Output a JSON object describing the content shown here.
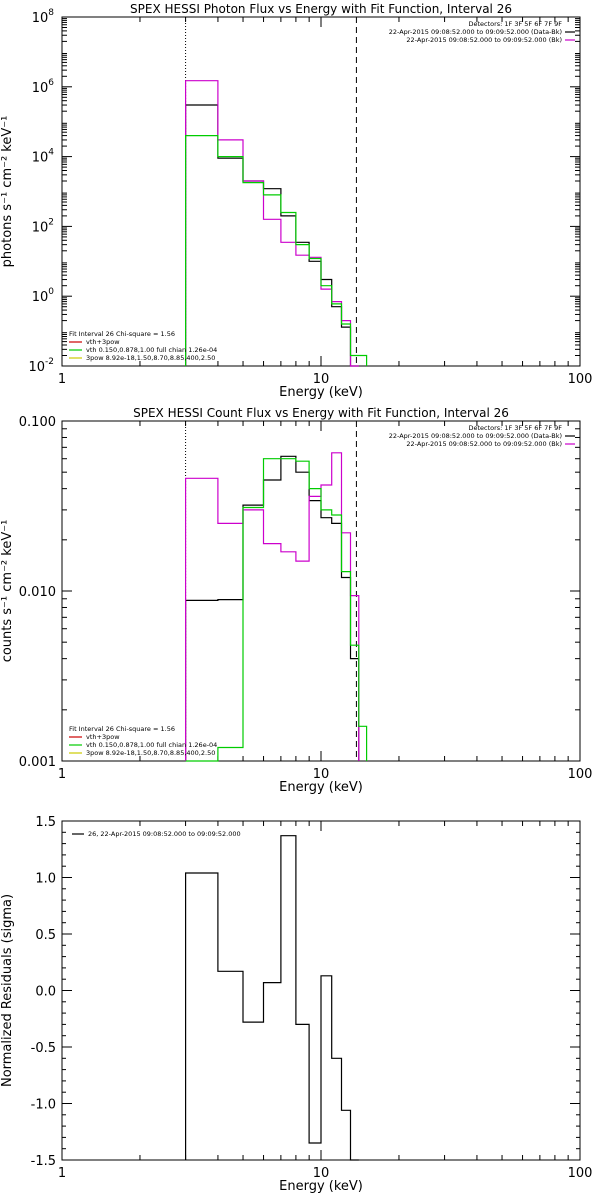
{
  "chart_data": [
    {
      "type": "line",
      "title": "SPEX HESSI Photon Flux vs Energy with Fit Function, Interval 26",
      "xlabel": "Energy (keV)",
      "ylabel": "photons s⁻¹ cm⁻² keV⁻¹",
      "xscale": "log",
      "yscale": "log",
      "xlim": [
        1,
        100
      ],
      "ylim": [
        0.01,
        100000000
      ],
      "xticks": [
        {
          "v": 1,
          "label": "1"
        },
        {
          "v": 10,
          "label": "10"
        },
        {
          "v": 100,
          "label": "100"
        }
      ],
      "yticks": [
        {
          "v": 0.01,
          "b": "10",
          "e": "-2"
        },
        {
          "v": 1,
          "b": "10",
          "e": "0"
        },
        {
          "v": 100,
          "b": "10",
          "e": "2"
        },
        {
          "v": 10000,
          "b": "10",
          "e": "4"
        },
        {
          "v": 1000000,
          "b": "10",
          "e": "6"
        },
        {
          "v": 100000000,
          "b": "10",
          "e": "8"
        }
      ],
      "header": [
        "Detectors: 1F 3F 5F 6F 7F 9F",
        "22-Apr-2015 09:08:52.000 to 09:09:52.000 (Data-Bk)",
        "22-Apr-2015 09:08:52.000 to 09:09:52.000 (Bk)"
      ],
      "legend": [
        "Fit Interval 26   Chi-square = 1.56",
        "vth+3pow",
        "vth 0.150,0.878,1.00  full chian 1.26e-04",
        "3pow 8.92e-18,1.50,8.70,8.85,400,2.50"
      ],
      "vlines": [
        {
          "x": 3.0,
          "style": "dotted"
        },
        {
          "x": 13.7,
          "style": "dashed"
        }
      ],
      "series": [
        {
          "name": "Data-Bk",
          "color": "#000000",
          "edges": [
            3.0,
            4.0,
            5.0,
            6.0,
            7.0,
            8.0,
            9.0,
            10.0,
            11.0,
            12.0,
            13.0,
            14.0
          ],
          "values": [
            300000,
            9000,
            2000,
            1200,
            200,
            35,
            10,
            3,
            0.5,
            0.13,
            0.005
          ]
        },
        {
          "name": "Bk",
          "color": "#cc00cc",
          "edges": [
            3.0,
            4.0,
            5.0,
            6.0,
            7.0,
            8.0,
            9.0,
            10.0,
            11.0,
            12.0,
            13.0,
            14.0
          ],
          "values": [
            1500000,
            30000,
            2000,
            160,
            35,
            15,
            13,
            1.6,
            0.7,
            0.2,
            0.005
          ]
        },
        {
          "name": "vth",
          "color": "#00cc00",
          "edges": [
            3.0,
            4.0,
            5.0,
            6.0,
            7.0,
            8.0,
            9.0,
            10.0,
            11.0,
            12.0,
            13.0,
            14.0,
            15.0
          ],
          "values": [
            40000,
            10000,
            1800,
            800,
            250,
            30,
            12,
            2,
            0.6,
            0.16,
            0.02,
            0.02
          ]
        }
      ]
    },
    {
      "type": "line",
      "title": "SPEX HESSI Count Flux vs Energy with Fit Function, Interval 26",
      "xlabel": "Energy (keV)",
      "ylabel": "counts s⁻¹ cm⁻² keV⁻¹",
      "xscale": "log",
      "yscale": "log",
      "xlim": [
        1,
        100
      ],
      "ylim": [
        0.001,
        0.1
      ],
      "xticks": [
        {
          "v": 1,
          "label": "1"
        },
        {
          "v": 10,
          "label": "10"
        },
        {
          "v": 100,
          "label": "100"
        }
      ],
      "yticks": [
        {
          "v": 0.001,
          "label": "0.001"
        },
        {
          "v": 0.01,
          "label": "0.010"
        },
        {
          "v": 0.1,
          "label": "0.100"
        }
      ],
      "header": [
        "Detectors: 1F 3F 5F 6F 7F 9F",
        "22-Apr-2015 09:08:52.000 to 09:09:52.000 (Data-Bk)",
        "22-Apr-2015 09:08:52.000 to 09:09:52.000 (Bk)"
      ],
      "legend": [
        "Fit Interval 26   Chi-square = 1.56",
        "vth+3pow",
        "vth 0.150,0.878,1.00  full chian 1.26e-04",
        "3pow 8.92e-18,1.50,8.70,8.85,400,2.50"
      ],
      "vlines": [
        {
          "x": 3.0,
          "style": "dotted"
        },
        {
          "x": 13.7,
          "style": "dashed"
        }
      ],
      "series": [
        {
          "name": "Data-Bk",
          "color": "#000000",
          "edges": [
            3.0,
            4.0,
            5.0,
            6.0,
            7.0,
            8.0,
            9.0,
            10.0,
            11.0,
            12.0,
            13.0,
            14.0
          ],
          "values": [
            0.0088,
            0.0089,
            0.032,
            0.045,
            0.062,
            0.05,
            0.034,
            0.027,
            0.025,
            0.012,
            0.004
          ]
        },
        {
          "name": "Bk",
          "color": "#cc00cc",
          "edges": [
            3.0,
            4.0,
            5.0,
            6.0,
            7.0,
            8.0,
            9.0,
            10.0,
            11.0,
            12.0,
            13.0,
            14.0
          ],
          "values": [
            0.046,
            0.025,
            0.03,
            0.019,
            0.017,
            0.015,
            0.036,
            0.042,
            0.065,
            0.022,
            0.0094
          ]
        },
        {
          "name": "vth",
          "color": "#00cc00",
          "edges": [
            3.0,
            4.0,
            5.0,
            6.0,
            7.0,
            8.0,
            9.0,
            10.0,
            11.0,
            12.0,
            13.0,
            14.0,
            15.0
          ],
          "values": [
            0.001,
            0.0012,
            0.031,
            0.06,
            0.06,
            0.058,
            0.04,
            0.03,
            0.028,
            0.013,
            0.0048,
            0.0016
          ]
        }
      ]
    },
    {
      "type": "line",
      "title": "",
      "xlabel": "Energy (keV)",
      "ylabel": "Normalized Residuals (sigma)",
      "xscale": "log",
      "yscale": "linear",
      "xlim": [
        1,
        100
      ],
      "ylim": [
        -1.5,
        1.5
      ],
      "xticks": [
        {
          "v": 1,
          "label": "1"
        },
        {
          "v": 10,
          "label": "10"
        },
        {
          "v": 100,
          "label": "100"
        }
      ],
      "yticks": [
        {
          "v": 1.5,
          "label": "1.5"
        },
        {
          "v": 1.0,
          "label": "1.0"
        },
        {
          "v": 0.5,
          "label": "0.5"
        },
        {
          "v": 0.0,
          "label": "0.0"
        },
        {
          "v": -0.5,
          "label": "-0.5"
        },
        {
          "v": -1.0,
          "label": "-1.0"
        },
        {
          "v": -1.5,
          "label": "-1.5"
        }
      ],
      "header": [],
      "legend": [
        "26, 22-Apr-2015 09:08:52.000 to 09:09:52.000"
      ],
      "vlines": [],
      "series": [
        {
          "name": "26, 22-Apr-2015 09:08:52.000 to 09:09:52.000",
          "color": "#000000",
          "edges": [
            3.0,
            4.0,
            5.0,
            6.0,
            7.0,
            8.0,
            9.0,
            10.0,
            11.0,
            12.0,
            13.0,
            14.0
          ],
          "values": [
            1.04,
            0.17,
            -0.28,
            0.07,
            1.37,
            -0.3,
            -1.35,
            0.13,
            -0.6,
            -1.06,
            -1.5
          ]
        }
      ]
    }
  ]
}
